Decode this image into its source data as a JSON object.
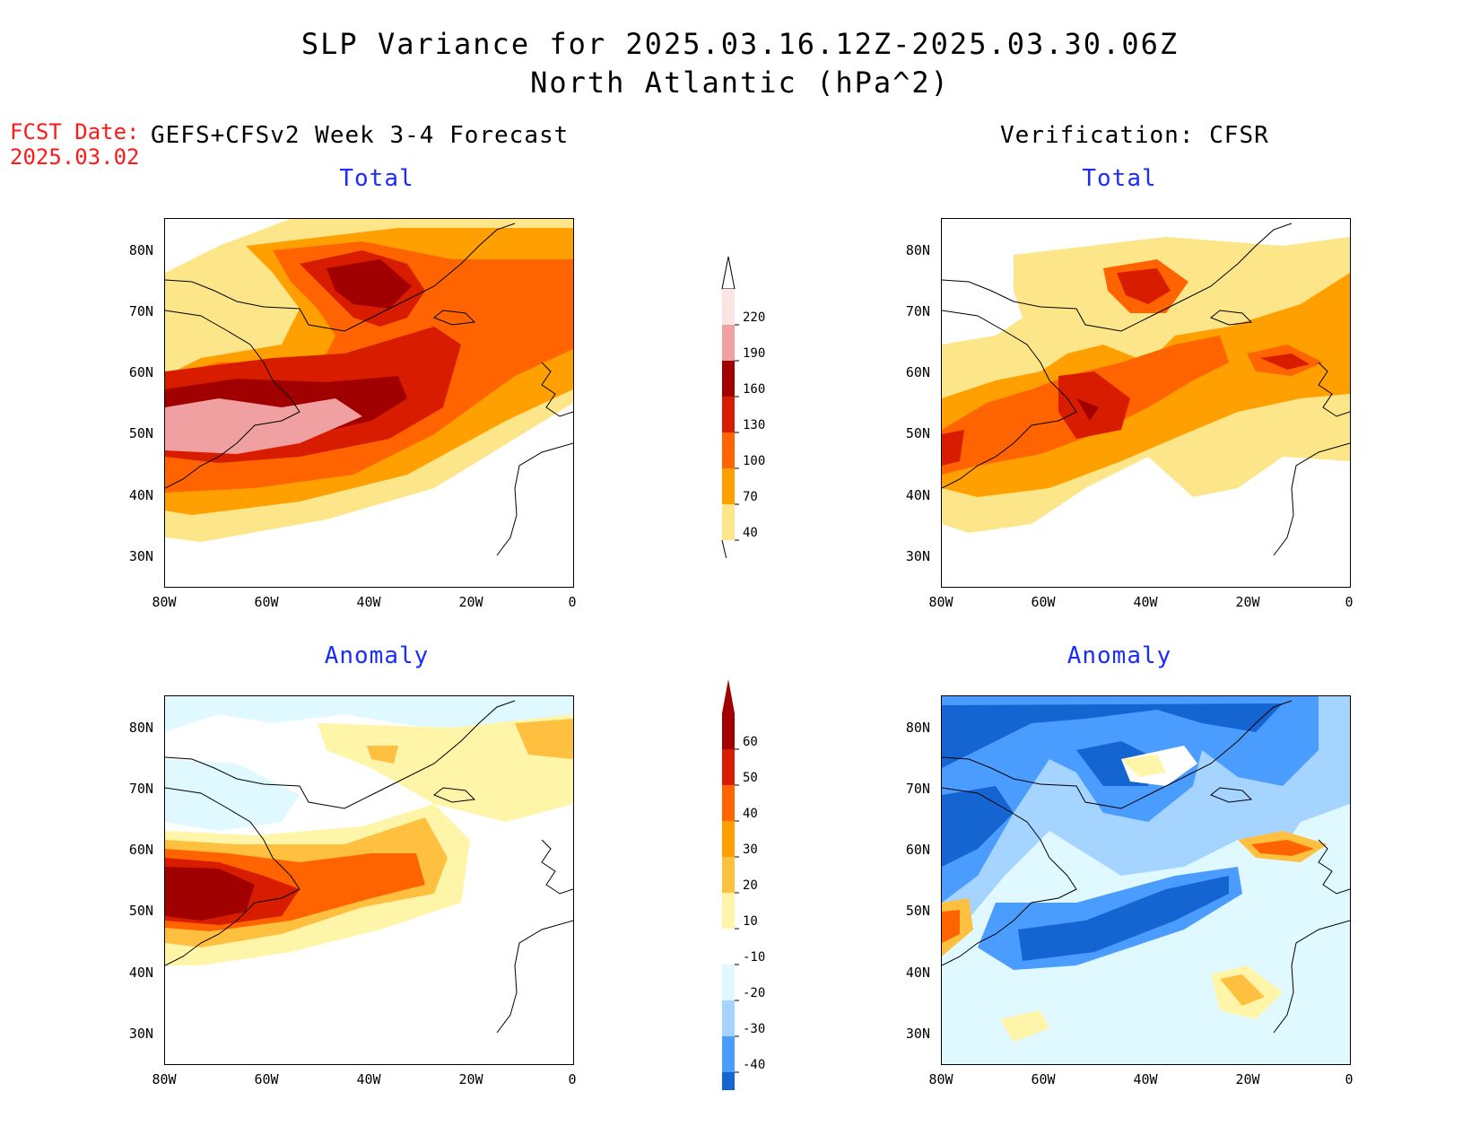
{
  "title": {
    "line1": "SLP Variance for 2025.03.16.12Z-2025.03.30.06Z",
    "line2": "North Atlantic (hPa^2)"
  },
  "fcst_date": {
    "label": "FCST Date:",
    "value": "2025.03.02"
  },
  "columns": {
    "left_header": "GEFS+CFSv2 Week 3-4 Forecast",
    "right_header": "Verification: CFSR"
  },
  "panels": {
    "top_left_title": "Total",
    "top_right_title": "Total",
    "bottom_left_title": "Anomaly",
    "bottom_right_title": "Anomaly"
  },
  "axes": {
    "lat_labels": [
      "80N",
      "70N",
      "60N",
      "50N",
      "40N",
      "30N"
    ],
    "lon_labels": [
      "80W",
      "60W",
      "40W",
      "20W",
      "0"
    ]
  },
  "colorbar_total": {
    "levels": [
      "220",
      "190",
      "160",
      "130",
      "100",
      "70",
      "40"
    ],
    "colors": [
      "#fce4e4",
      "#f0a0a0",
      "#a00000",
      "#d81c00",
      "#ff6400",
      "#ffa000",
      "#fde68a"
    ]
  },
  "colorbar_anomaly": {
    "levels": [
      "60",
      "50",
      "40",
      "30",
      "20",
      "10",
      "-10",
      "-20",
      "-30",
      "-40"
    ],
    "colors": [
      "#a00000",
      "#d81c00",
      "#ff6400",
      "#ffa000",
      "#ffc040",
      "#fff5a8",
      "#ffffff",
      "#e0f8ff",
      "#a4d4ff",
      "#4a9cff",
      "#1464d2"
    ]
  }
}
